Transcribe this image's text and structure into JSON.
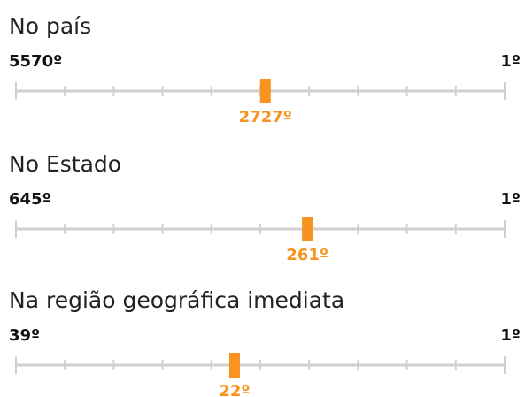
{
  "sections": [
    {
      "title": "No país",
      "min": {
        "value": 5570,
        "label": "5570º"
      },
      "max": {
        "value": 1,
        "label": "1º"
      },
      "rank": {
        "value": 2727,
        "label": "2727º"
      }
    },
    {
      "title": "No Estado",
      "min": {
        "value": 645,
        "label": "645º"
      },
      "max": {
        "value": 1,
        "label": "1º"
      },
      "rank": {
        "value": 261,
        "label": "261º"
      }
    },
    {
      "title": "Na região geográfica imediata",
      "min": {
        "value": 39,
        "label": "39º"
      },
      "max": {
        "value": 1,
        "label": "1º"
      },
      "rank": {
        "value": 22,
        "label": "22º"
      }
    }
  ]
}
